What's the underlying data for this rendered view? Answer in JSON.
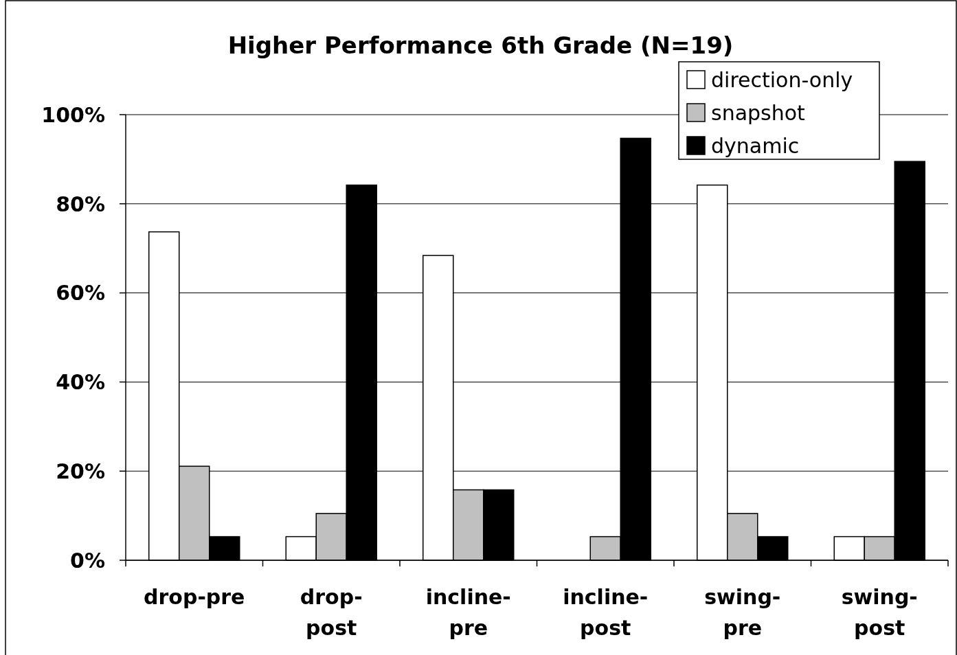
{
  "chart_data": {
    "type": "bar",
    "title": "Higher Performance 6th Grade (N=19)",
    "categories": [
      "drop-pre",
      "drop-post",
      "incline-pre",
      "incline-post",
      "swing-pre",
      "swing-post"
    ],
    "series": [
      {
        "name": "direction-only",
        "color": "#ffffff",
        "values": [
          73.7,
          5.3,
          68.4,
          0,
          84.2,
          5.3
        ]
      },
      {
        "name": "snapshot",
        "color": "#c0c0c0",
        "values": [
          21.1,
          10.5,
          15.8,
          5.3,
          10.5,
          5.3
        ]
      },
      {
        "name": "dynamic",
        "color": "#000000",
        "values": [
          5.3,
          84.2,
          15.8,
          94.7,
          5.3,
          89.5
        ]
      }
    ],
    "ylim": [
      0,
      100
    ],
    "yticks": [
      {
        "value": 0,
        "label": "0%"
      },
      {
        "value": 20,
        "label": "20%"
      },
      {
        "value": 40,
        "label": "40%"
      },
      {
        "value": 60,
        "label": "60%"
      },
      {
        "value": 80,
        "label": "80%"
      },
      {
        "value": 100,
        "label": "100%"
      }
    ],
    "grid": "y",
    "legend": "top right"
  }
}
